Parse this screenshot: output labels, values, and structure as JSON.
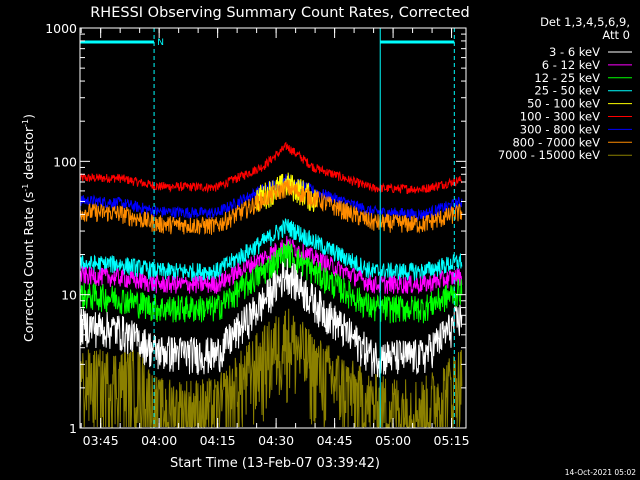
{
  "chart_data": {
    "type": "line",
    "title": "RHESSI Observing Summary Count Rates, Corrected",
    "xlabel": "Start Time (13-Feb-07 03:39:42)",
    "ylabel_main": "Corrected Count Rate (s",
    "ylabel_sup1": "-1",
    "ylabel_mid": " detector",
    "ylabel_sup2": "-1",
    "ylabel_end": ")",
    "y_scale": "log",
    "ylim": [
      1,
      1000
    ],
    "y_ticks": [
      {
        "value": 1,
        "label": "1"
      },
      {
        "value": 10,
        "label": "10"
      },
      {
        "value": 100,
        "label": "100"
      },
      {
        "value": 1000,
        "label": "1000"
      }
    ],
    "x_range_minutes": [
      0,
      99
    ],
    "x_ticks": [
      {
        "t": 5.3,
        "label": "03:45"
      },
      {
        "t": 20.3,
        "label": "04:00"
      },
      {
        "t": 35.3,
        "label": "04:15"
      },
      {
        "t": 50.3,
        "label": "04:30"
      },
      {
        "t": 65.3,
        "label": "04:45"
      },
      {
        "t": 80.3,
        "label": "05:00"
      },
      {
        "t": 95.3,
        "label": "05:15"
      }
    ],
    "legend_header": [
      "Det 1,3,4,5,6,9,",
      "Att 0"
    ],
    "legend_placement": "right",
    "series": [
      {
        "name": "3 - 6 keV",
        "color": "#ffffff"
      },
      {
        "name": "6 - 12 keV",
        "color": "#ff00ff"
      },
      {
        "name": "12 - 25 keV",
        "color": "#00ff00"
      },
      {
        "name": "25 - 50 keV",
        "color": "#00ffff"
      },
      {
        "name": "50 - 100 keV",
        "color": "#ffff00"
      },
      {
        "name": "100 - 300 keV",
        "color": "#ff0000"
      },
      {
        "name": "300 - 800 keV",
        "color": "#0000ff"
      },
      {
        "name": "800 - 7000 keV",
        "color": "#ff8c00"
      },
      {
        "name": "7000 - 15000 keV",
        "color": "#8b8000"
      }
    ],
    "curves": [
      {
        "color": "#ff0000",
        "v": [
          [
            0,
            75
          ],
          [
            10,
            75
          ],
          [
            20,
            65
          ],
          [
            35,
            64
          ],
          [
            47,
            92
          ],
          [
            53,
            130
          ],
          [
            60,
            90
          ],
          [
            75,
            63
          ],
          [
            88,
            62
          ],
          [
            98,
            73
          ]
        ],
        "noise": 0.04
      },
      {
        "color": "#0000ff",
        "v": [
          [
            0,
            51
          ],
          [
            10,
            49
          ],
          [
            20,
            42
          ],
          [
            35,
            41
          ],
          [
            47,
            62
          ],
          [
            53,
            74
          ],
          [
            60,
            60
          ],
          [
            75,
            42
          ],
          [
            88,
            40
          ],
          [
            98,
            50
          ]
        ],
        "noise": 0.05
      },
      {
        "color": "#ffff00",
        "v": [
          [
            45,
            52
          ],
          [
            49,
            60
          ],
          [
            53,
            68
          ],
          [
            57,
            60
          ],
          [
            61,
            50
          ]
        ],
        "noise": 0.12
      },
      {
        "color": "#ff8c00",
        "v": [
          [
            0,
            42
          ],
          [
            10,
            41
          ],
          [
            20,
            34
          ],
          [
            35,
            33
          ],
          [
            47,
            52
          ],
          [
            53,
            64
          ],
          [
            60,
            53
          ],
          [
            75,
            35
          ],
          [
            88,
            34
          ],
          [
            98,
            42
          ]
        ],
        "noise": 0.08
      },
      {
        "color": "#00ffff",
        "v": [
          [
            0,
            17
          ],
          [
            10,
            17
          ],
          [
            20,
            15
          ],
          [
            35,
            15
          ],
          [
            47,
            25
          ],
          [
            53,
            33
          ],
          [
            60,
            25
          ],
          [
            75,
            15
          ],
          [
            88,
            15
          ],
          [
            98,
            18
          ]
        ],
        "noise": 0.08
      },
      {
        "color": "#ff00ff",
        "v": [
          [
            0,
            14
          ],
          [
            10,
            13.5
          ],
          [
            20,
            12
          ],
          [
            35,
            12
          ],
          [
            47,
            19
          ],
          [
            53,
            24
          ],
          [
            60,
            19
          ],
          [
            75,
            12
          ],
          [
            88,
            12
          ],
          [
            98,
            14
          ]
        ],
        "noise": 0.08
      },
      {
        "color": "#00ff00",
        "v": [
          [
            0,
            10
          ],
          [
            10,
            9.5
          ],
          [
            20,
            8
          ],
          [
            35,
            8
          ],
          [
            47,
            15
          ],
          [
            53,
            21
          ],
          [
            60,
            15
          ],
          [
            75,
            8
          ],
          [
            88,
            8
          ],
          [
            98,
            11
          ]
        ],
        "noise": 0.12
      },
      {
        "color": "#000000",
        "v": [
          [
            0,
            6
          ],
          [
            10,
            5.5
          ],
          [
            20,
            3.8
          ],
          [
            35,
            3.6
          ],
          [
            47,
            9
          ],
          [
            53,
            15
          ],
          [
            60,
            9
          ],
          [
            75,
            3.5
          ],
          [
            88,
            3.5
          ],
          [
            98,
            7
          ]
        ],
        "noise": 0.16
      },
      {
        "color": "#8b8000",
        "v": [
          [
            0,
            2.3
          ],
          [
            15,
            2.3
          ],
          [
            20,
            1.4
          ],
          [
            35,
            1.4
          ],
          [
            45,
            3
          ],
          [
            53,
            5
          ],
          [
            60,
            3
          ],
          [
            75,
            1.5
          ],
          [
            88,
            1.4
          ],
          [
            98,
            2.5
          ]
        ],
        "noise": 0.35
      }
    ],
    "markers": {
      "dashed_minutes": [
        19,
        96
      ],
      "solid_minutes": [
        77
      ],
      "top_bar_minutes": [
        [
          0,
          19
        ],
        [
          77,
          96
        ]
      ],
      "n_label": "N",
      "n_label_minute": 19.8
    },
    "timestamp": "14-Oct-2021 05:02"
  }
}
